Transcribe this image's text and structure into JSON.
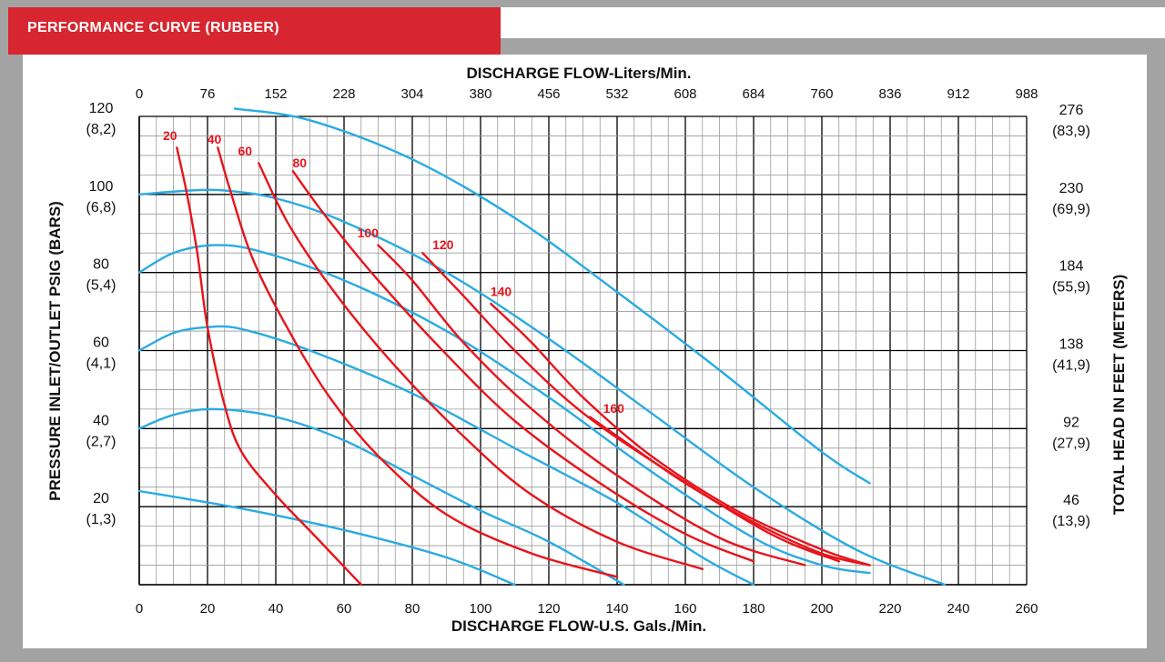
{
  "header": {
    "title": "PERFORMANCE CURVE  (RUBBER)"
  },
  "colors": {
    "accent": "#d72630",
    "air_curves": "#29abe2",
    "flow_curves": "#e8141b",
    "grid": "#000000"
  },
  "chart_data": {
    "type": "line",
    "title": "PERFORMANCE CURVE  (RUBBER)",
    "xlabel": "DISCHARGE FLOW-U.S. Gals./Min.",
    "x2label": "DISCHARGE FLOW-Liters/Min.",
    "ylabel": "PRESSURE INLET/OUTLET PSIG (BARS)",
    "y2label": "TOTAL HEAD IN FEET (METERS)",
    "xlim": [
      0,
      260
    ],
    "ylim": [
      0,
      120
    ],
    "grid": true,
    "x_ticks": [
      "0",
      "20",
      "40",
      "60",
      "80",
      "100",
      "120",
      "140",
      "160",
      "180",
      "200",
      "220",
      "240",
      "260"
    ],
    "x2_ticks": [
      "0",
      "76",
      "152",
      "228",
      "304",
      "380",
      "456",
      "532",
      "608",
      "684",
      "760",
      "836",
      "912",
      "988"
    ],
    "y_ticks": [
      {
        "value": 120,
        "psi": "120",
        "bar": "(8,2)"
      },
      {
        "value": 100,
        "psi": "100",
        "bar": "(6,8)"
      },
      {
        "value": 80,
        "psi": "80",
        "bar": "(5,4)"
      },
      {
        "value": 60,
        "psi": "60",
        "bar": "(4,1)"
      },
      {
        "value": 40,
        "psi": "40",
        "bar": "(2,7)"
      },
      {
        "value": 20,
        "psi": "20",
        "bar": "(1,3)"
      }
    ],
    "y2_ticks": [
      {
        "value": 120,
        "ft": "276",
        "m": "(83,9)"
      },
      {
        "value": 100,
        "ft": "230",
        "m": "(69,9)"
      },
      {
        "value": 80,
        "ft": "184",
        "m": "(55,9)"
      },
      {
        "value": 60,
        "ft": "138",
        "m": "(41,9)"
      },
      {
        "value": 40,
        "ft": "92",
        "m": "(27,9)"
      },
      {
        "value": 20,
        "ft": "46",
        "m": "(13,9)"
      }
    ],
    "air_curves": [
      {
        "points": [
          [
            0,
            24
          ],
          [
            30,
            19.5
          ],
          [
            60,
            14
          ],
          [
            90,
            7
          ],
          [
            110,
            0
          ]
        ]
      },
      {
        "points": [
          [
            0,
            40
          ],
          [
            10,
            43.5
          ],
          [
            22,
            45
          ],
          [
            40,
            43
          ],
          [
            60,
            37
          ],
          [
            80,
            28
          ],
          [
            100,
            19
          ],
          [
            120,
            11
          ],
          [
            142,
            0
          ]
        ]
      },
      {
        "points": [
          [
            0,
            60
          ],
          [
            10,
            64.5
          ],
          [
            20,
            66
          ],
          [
            30,
            65.5
          ],
          [
            50,
            60
          ],
          [
            80,
            49
          ],
          [
            110,
            35
          ],
          [
            140,
            21
          ],
          [
            165,
            7
          ],
          [
            180,
            0
          ]
        ]
      },
      {
        "points": [
          [
            0,
            80
          ],
          [
            10,
            85
          ],
          [
            22,
            87
          ],
          [
            35,
            85.5
          ],
          [
            60,
            78
          ],
          [
            90,
            65
          ],
          [
            120,
            48
          ],
          [
            150,
            29
          ],
          [
            180,
            12
          ],
          [
            200,
            5
          ],
          [
            214,
            3
          ]
        ]
      },
      {
        "points": [
          [
            0,
            100
          ],
          [
            15,
            101
          ],
          [
            25,
            101
          ],
          [
            40,
            99
          ],
          [
            60,
            93
          ],
          [
            90,
            80
          ],
          [
            120,
            63
          ],
          [
            150,
            44
          ],
          [
            180,
            25
          ],
          [
            210,
            9
          ],
          [
            236,
            0
          ]
        ]
      },
      {
        "points": [
          [
            28,
            122
          ],
          [
            50,
            119
          ],
          [
            80,
            109
          ],
          [
            110,
            94
          ],
          [
            140,
            75
          ],
          [
            170,
            55
          ],
          [
            200,
            34
          ],
          [
            214,
            26
          ]
        ]
      }
    ],
    "flow_curves": [
      {
        "label": "20",
        "label_at": [
          9,
          114
        ],
        "points": [
          [
            11,
            112
          ],
          [
            14,
            100
          ],
          [
            17,
            85
          ],
          [
            20,
            66
          ],
          [
            25,
            46
          ],
          [
            30,
            34
          ],
          [
            40,
            23
          ],
          [
            52,
            12
          ],
          [
            65,
            0
          ]
        ]
      },
      {
        "label": "40",
        "label_at": [
          22,
          113
        ],
        "points": [
          [
            23,
            112
          ],
          [
            27,
            100
          ],
          [
            33,
            84
          ],
          [
            42,
            68
          ],
          [
            55,
            49
          ],
          [
            70,
            33
          ],
          [
            90,
            18
          ],
          [
            115,
            8
          ],
          [
            140,
            2
          ]
        ]
      },
      {
        "label": "60",
        "label_at": [
          31,
          110
        ],
        "points": [
          [
            35,
            108
          ],
          [
            44,
            92
          ],
          [
            58,
            74
          ],
          [
            75,
            56
          ],
          [
            95,
            38
          ],
          [
            115,
            23
          ],
          [
            140,
            11
          ],
          [
            165,
            4
          ]
        ]
      },
      {
        "label": "80",
        "label_at": [
          47,
          107
        ],
        "points": [
          [
            45,
            106
          ],
          [
            55,
            94
          ],
          [
            70,
            78
          ],
          [
            90,
            59
          ],
          [
            110,
            42
          ],
          [
            135,
            26
          ],
          [
            160,
            13
          ],
          [
            180,
            6
          ]
        ]
      },
      {
        "label": "100",
        "label_at": [
          67,
          89
        ],
        "points": [
          [
            70,
            87
          ],
          [
            80,
            78
          ],
          [
            95,
            62
          ],
          [
            115,
            45
          ],
          [
            140,
            28
          ],
          [
            170,
            12
          ],
          [
            195,
            5
          ]
        ]
      },
      {
        "label": "120",
        "label_at": [
          89,
          86
        ],
        "points": [
          [
            83,
            85
          ],
          [
            95,
            74
          ],
          [
            110,
            60
          ],
          [
            130,
            44
          ],
          [
            155,
            29
          ],
          [
            185,
            13
          ],
          [
            205,
            6
          ]
        ]
      },
      {
        "label": "140",
        "label_at": [
          106,
          74
        ],
        "points": [
          [
            103,
            72
          ],
          [
            115,
            62
          ],
          [
            130,
            48
          ],
          [
            150,
            33
          ],
          [
            175,
            19
          ],
          [
            200,
            9
          ],
          [
            214,
            5
          ]
        ]
      },
      {
        "label": "160",
        "label_at": [
          139,
          44
        ],
        "points": [
          [
            132,
            43
          ],
          [
            145,
            35
          ],
          [
            160,
            26
          ],
          [
            180,
            16
          ],
          [
            200,
            8
          ],
          [
            214,
            5
          ]
        ]
      }
    ]
  }
}
